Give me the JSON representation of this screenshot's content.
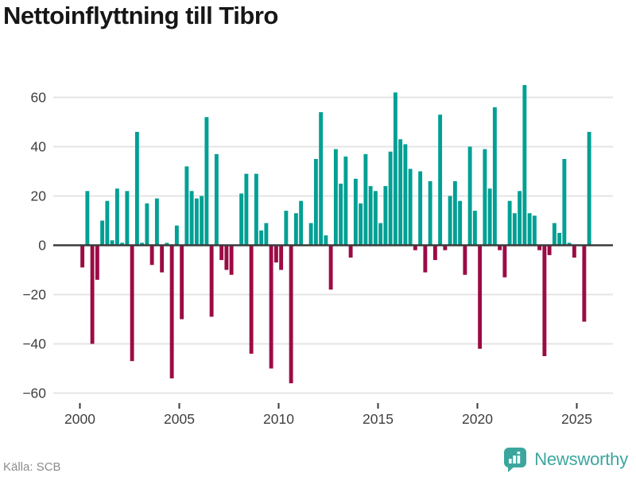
{
  "title": "Nettoinflyttning till Tibro",
  "footer": {
    "source": "Källa: SCB",
    "brand": "Newsworthy"
  },
  "colors": {
    "positive": "#00A094",
    "negative": "#9C0B45",
    "grid": "#E4E4E4",
    "zero_line": "#3B3B3B",
    "axis_text": "#3F3F3F",
    "tick_mark": "#3B3B3B",
    "title_text": "#161616",
    "source_text": "#8C8C8C",
    "brand_teal": "#3BA69E"
  },
  "chart_data": {
    "type": "bar",
    "title": "Nettoinflyttning till Tibro",
    "frequency": "quarterly",
    "x_start": {
      "year": 2000,
      "quarter": 1
    },
    "values": [
      -9,
      22,
      -40,
      -14,
      10,
      18,
      2,
      23,
      1,
      22,
      -47,
      46,
      1,
      17,
      -8,
      19,
      -11,
      1,
      -54,
      8,
      -30,
      32,
      22,
      19,
      20,
      52,
      -29,
      37,
      -6,
      -10,
      -12,
      0,
      21,
      29,
      -44,
      29,
      6,
      9,
      -50,
      -7,
      -10,
      14,
      -56,
      13,
      18,
      0,
      9,
      35,
      54,
      4,
      -18,
      39,
      25,
      36,
      -5,
      27,
      17,
      37,
      24,
      22,
      9,
      24,
      38,
      62,
      43,
      41,
      31,
      -2,
      30,
      -11,
      26,
      -6,
      53,
      -2,
      20,
      26,
      18,
      -12,
      40,
      14,
      -42,
      39,
      23,
      56,
      -2,
      -13,
      18,
      13,
      22,
      65,
      13,
      12,
      -2,
      -45,
      -4,
      9,
      5,
      35,
      1,
      -5,
      0,
      -31,
      46
    ],
    "ylim": [
      -60,
      60
    ],
    "yticks": [
      -60,
      -40,
      -20,
      0,
      20,
      40,
      60
    ],
    "ytick_labels": [
      "−60",
      "−40",
      "−20",
      "0",
      "20",
      "40",
      "60"
    ],
    "xtick_years": [
      2000,
      2005,
      2010,
      2015,
      2020,
      2025
    ],
    "grid": true,
    "legend": false,
    "bar_color_rule": "teal for positive values, crimson for negative values"
  }
}
